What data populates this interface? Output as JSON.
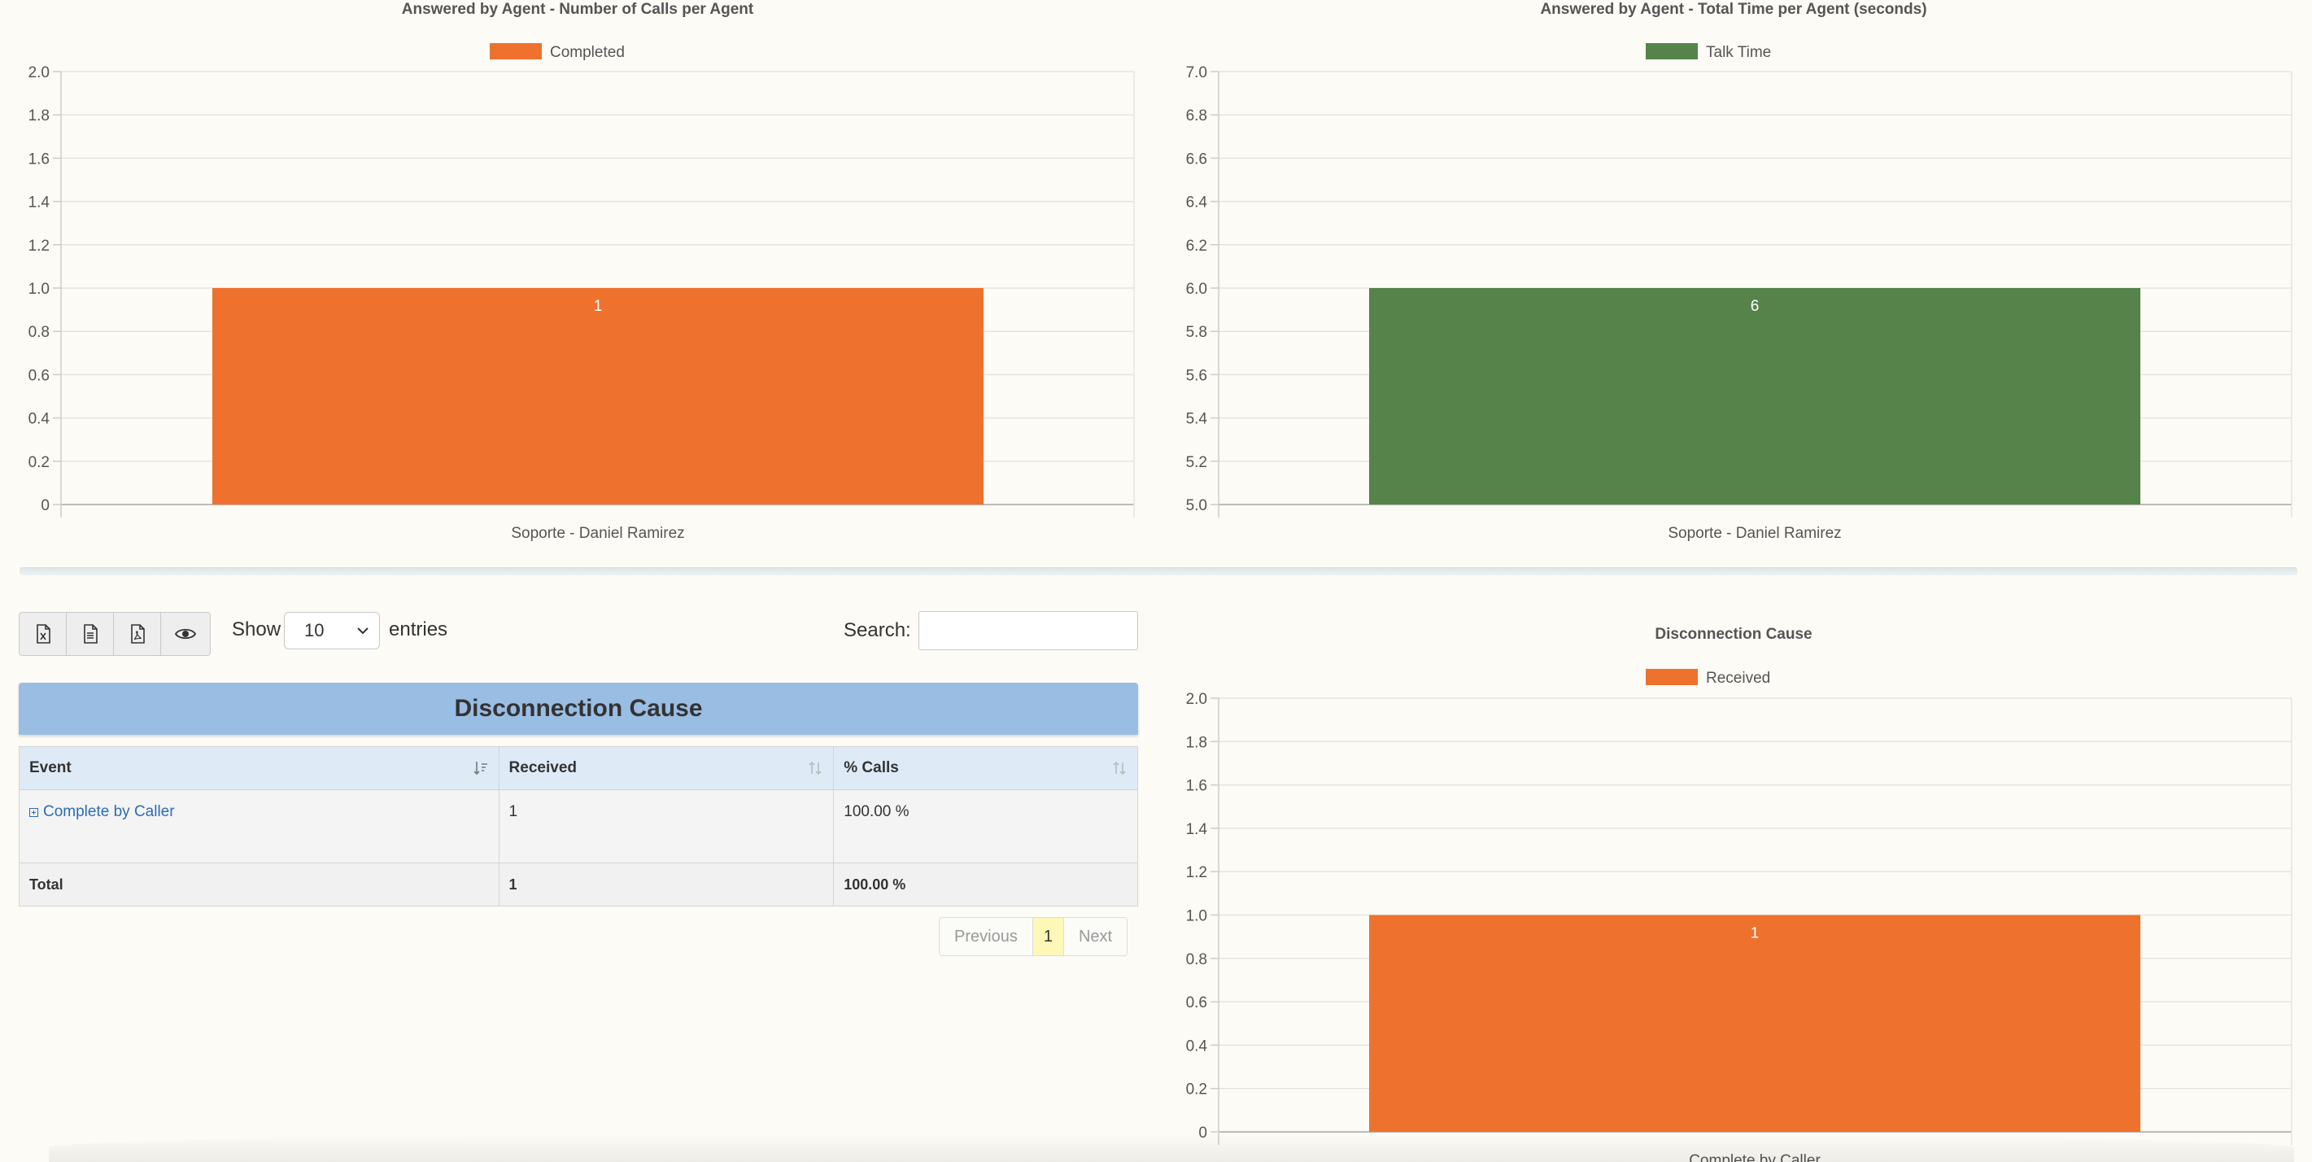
{
  "charts": {
    "agent_calls": {
      "title": "Answered by Agent - Number of Calls per Agent",
      "legend": "Completed",
      "color": "#ef712e",
      "category": "Soporte - Daniel Ramirez",
      "value_label": "1",
      "ticks": [
        "2.0",
        "1.8",
        "1.6",
        "1.4",
        "1.2",
        "1.0",
        "0.8",
        "0.6",
        "0.4",
        "0.2",
        "0"
      ]
    },
    "agent_time": {
      "title": "Answered by Agent - Total Time per Agent (seconds)",
      "legend": "Talk Time",
      "color": "#55834a",
      "category": "Soporte - Daniel Ramirez",
      "value_label": "6",
      "ticks": [
        "7.0",
        "6.8",
        "6.6",
        "6.4",
        "6.2",
        "6.0",
        "5.8",
        "5.6",
        "5.4",
        "5.2",
        "5.0"
      ]
    },
    "disconnection": {
      "title": "Disconnection Cause",
      "legend": "Received",
      "color": "#ef712e",
      "category": "Complete by Caller",
      "value_label": "1",
      "ticks": [
        "2.0",
        "1.8",
        "1.6",
        "1.4",
        "1.2",
        "1.0",
        "0.8",
        "0.6",
        "0.4",
        "0.2",
        "0"
      ]
    }
  },
  "chart_data": [
    {
      "type": "bar",
      "title": "Answered by Agent - Number of Calls per Agent",
      "categories": [
        "Soporte - Daniel Ramirez"
      ],
      "series": [
        {
          "name": "Completed",
          "values": [
            1
          ]
        }
      ],
      "ylim": [
        0,
        2.0
      ],
      "grid": true,
      "legend": "top-center"
    },
    {
      "type": "bar",
      "title": "Answered by Agent - Total Time per Agent (seconds)",
      "categories": [
        "Soporte - Daniel Ramirez"
      ],
      "series": [
        {
          "name": "Talk Time",
          "values": [
            6
          ]
        }
      ],
      "ylim": [
        5.0,
        7.0
      ],
      "grid": true,
      "legend": "top-center"
    },
    {
      "type": "bar",
      "title": "Disconnection Cause",
      "categories": [
        "Complete by Caller"
      ],
      "series": [
        {
          "name": "Received",
          "values": [
            1
          ]
        }
      ],
      "ylim": [
        0,
        2.0
      ],
      "grid": true,
      "legend": "top-center"
    }
  ],
  "toolbar": {
    "buttons": [
      "excel-icon",
      "csv-icon",
      "pdf-icon",
      "eye-icon"
    ]
  },
  "length_menu": {
    "show_label": "Show",
    "selected": "10",
    "entries_label": "entries"
  },
  "search": {
    "label": "Search:",
    "value": ""
  },
  "table": {
    "title": "Disconnection Cause",
    "columns": [
      "Event",
      "Received",
      "% Calls"
    ],
    "rows": [
      {
        "event": "Complete by Caller",
        "received": "1",
        "percent": "100.00 %"
      }
    ],
    "total": {
      "label": "Total",
      "received": "1",
      "percent": "100.00 %"
    }
  },
  "pagination": {
    "previous": "Previous",
    "current": "1",
    "next": "Next"
  }
}
